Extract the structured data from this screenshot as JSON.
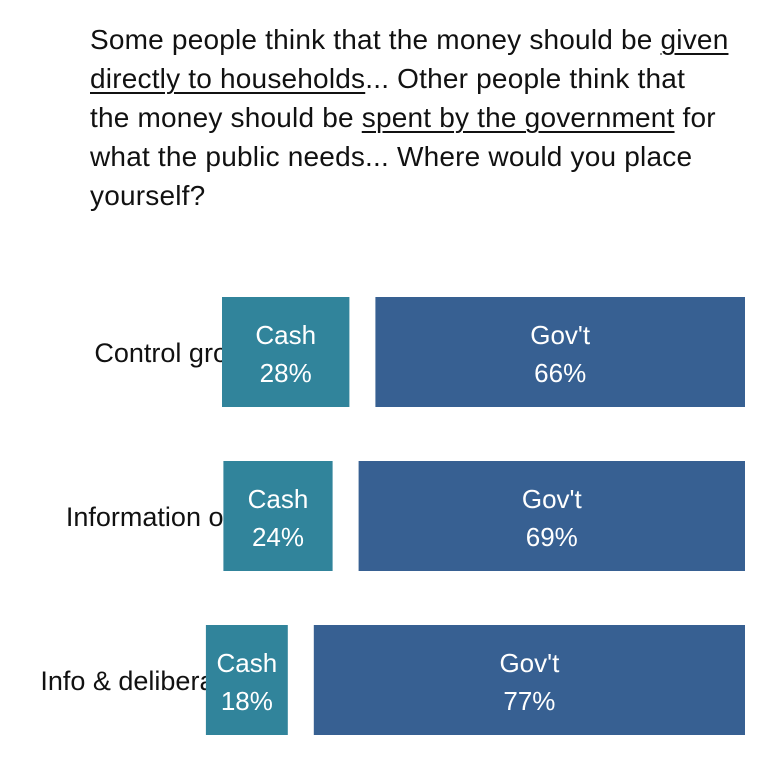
{
  "question": {
    "part1": "Some people think that the money should be ",
    "link1": "given directly to households",
    "part2": "... Other people think that the money should be ",
    "link2": "spent by the government",
    "part3": " for what the public needs... Where would you place yourself?"
  },
  "chart_data": {
    "type": "bar",
    "orientation": "horizontal",
    "stacked": true,
    "categories": [
      "Control group",
      "Information only",
      "Info & deliberation"
    ],
    "series": [
      {
        "name": "Cash",
        "values": [
          28,
          24,
          18
        ],
        "color": "#31849b"
      },
      {
        "name": "Gov't",
        "values": [
          66,
          69,
          77
        ],
        "color": "#376092"
      }
    ],
    "value_suffix": "%",
    "title": "",
    "xlabel": "",
    "ylabel": "",
    "grid": false,
    "legend": "none"
  }
}
